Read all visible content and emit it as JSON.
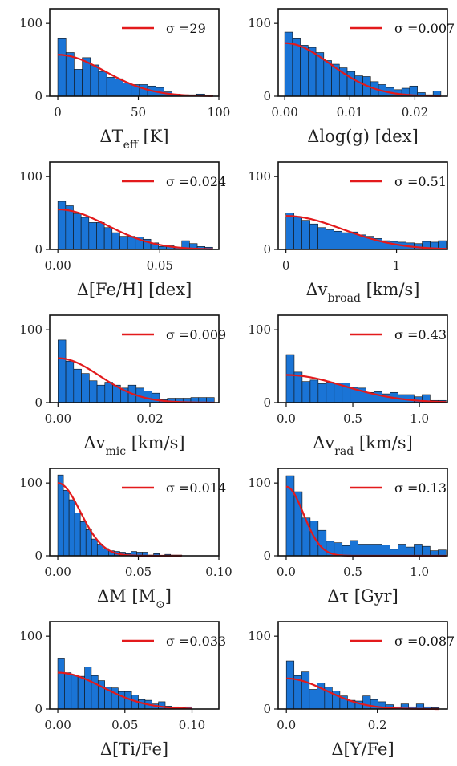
{
  "chart_data": [
    {
      "type": "bar",
      "xlabel": "ΔT_eff [K]",
      "xlim": [
        -5,
        100
      ],
      "ylim": [
        0,
        120
      ],
      "xticks": [
        0,
        50,
        100
      ],
      "yticks": [
        0,
        100
      ],
      "bin_width": 5.07,
      "bins_x": [
        0,
        5.07,
        10.14,
        15.21,
        20.28,
        25.35,
        30.42,
        35.49,
        40.56,
        45.63,
        50.7,
        55.77,
        60.84,
        65.91,
        70.98,
        76.05,
        81.12,
        86.19,
        91.26
      ],
      "values": [
        80,
        60,
        37,
        53,
        43,
        34,
        26,
        24,
        18,
        16,
        16,
        14,
        12,
        6,
        3,
        2,
        2,
        3,
        1
      ],
      "fit": {
        "sigma": 29,
        "amplitude": 57,
        "label": "σ =29",
        "color": "#e31a1c"
      },
      "bar_color": "#1a74d6"
    },
    {
      "type": "bar",
      "xlabel": "Δlog(g) [dex]",
      "xlim": [
        -0.001,
        0.025
      ],
      "ylim": [
        0,
        120
      ],
      "xticks": [
        0,
        0.01,
        0.02
      ],
      "xticklabels": [
        "0.00",
        "0.01",
        "0.02"
      ],
      "yticks": [
        0,
        100
      ],
      "bin_width": 0.0012,
      "bins_x": [
        0,
        0.0012,
        0.0024,
        0.0036,
        0.0048,
        0.006,
        0.0072,
        0.0084,
        0.0096,
        0.0108,
        0.012,
        0.0132,
        0.0144,
        0.0156,
        0.0168,
        0.018,
        0.0192,
        0.0204,
        0.0216,
        0.0228
      ],
      "values": [
        88,
        80,
        70,
        67,
        60,
        49,
        44,
        39,
        34,
        28,
        27,
        20,
        16,
        12,
        9,
        11,
        14,
        5,
        2,
        7
      ],
      "fit": {
        "sigma": 0.007,
        "amplitude": 73,
        "label": "σ =0.007",
        "color": "#e31a1c"
      },
      "bar_color": "#1a74d6"
    },
    {
      "type": "bar",
      "xlabel": "Δ[Fe/H] [dex]",
      "xlim": [
        -0.004,
        0.079
      ],
      "ylim": [
        0,
        120
      ],
      "xticks": [
        0,
        0.05
      ],
      "xticklabels": [
        "0.00",
        "0.05"
      ],
      "yticks": [
        0,
        100
      ],
      "bin_width": 0.0038,
      "bins_x": [
        0,
        0.0038,
        0.0076,
        0.0114,
        0.0152,
        0.019,
        0.0228,
        0.0266,
        0.0304,
        0.0342,
        0.038,
        0.0418,
        0.0456,
        0.0494,
        0.0532,
        0.057,
        0.0608,
        0.0646,
        0.0684,
        0.0722
      ],
      "values": [
        66,
        60,
        49,
        44,
        37,
        37,
        30,
        23,
        18,
        18,
        17,
        14,
        9,
        4,
        5,
        2,
        12,
        8,
        4,
        3
      ],
      "fit": {
        "sigma": 0.024,
        "amplitude": 55,
        "label": "σ =0.024",
        "color": "#e31a1c"
      },
      "bar_color": "#1a74d6"
    },
    {
      "type": "bar",
      "xlabel": "Δv_broad [km/s]",
      "xlim": [
        -0.07,
        1.46
      ],
      "ylim": [
        0,
        120
      ],
      "xticks": [
        0,
        1
      ],
      "xticklabels": [
        "0",
        "1"
      ],
      "yticks": [
        0,
        100
      ],
      "bin_width": 0.0725,
      "bins_x": [
        0,
        0.0725,
        0.145,
        0.2175,
        0.29,
        0.3625,
        0.435,
        0.5075,
        0.58,
        0.6525,
        0.725,
        0.7975,
        0.87,
        0.9425,
        1.015,
        1.0875,
        1.16,
        1.2325,
        1.305,
        1.3775
      ],
      "values": [
        50,
        45,
        40,
        35,
        30,
        27,
        25,
        23,
        24,
        20,
        18,
        15,
        12,
        11,
        10,
        9,
        8,
        11,
        10,
        12
      ],
      "fit": {
        "sigma": 0.51,
        "amplitude": 46,
        "label": "σ =0.51",
        "color": "#e31a1c"
      },
      "bar_color": "#1a74d6"
    },
    {
      "type": "bar",
      "xlabel": "Δv_mic [km/s]",
      "xlim": [
        -0.0018,
        0.035
      ],
      "ylim": [
        0,
        120
      ],
      "xticks": [
        0,
        0.02
      ],
      "xticklabels": [
        "0.00",
        "0.02"
      ],
      "yticks": [
        0,
        100
      ],
      "bin_width": 0.0017,
      "bins_x": [
        0,
        0.0017,
        0.0034,
        0.0051,
        0.0068,
        0.0085,
        0.0102,
        0.0119,
        0.0136,
        0.0153,
        0.017,
        0.0187,
        0.0204,
        0.0221,
        0.0238,
        0.0255,
        0.0272,
        0.0289,
        0.0306,
        0.0323
      ],
      "values": [
        86,
        57,
        46,
        40,
        30,
        24,
        28,
        24,
        20,
        24,
        20,
        16,
        13,
        4,
        6,
        6,
        6,
        7,
        7,
        7
      ],
      "fit": {
        "sigma": 0.009,
        "amplitude": 61,
        "label": "σ =0.009",
        "color": "#e31a1c"
      },
      "bar_color": "#1a74d6"
    },
    {
      "type": "bar",
      "xlabel": "Δv_rad [km/s]",
      "xlim": [
        -0.06,
        1.21
      ],
      "ylim": [
        0,
        120
      ],
      "xticks": [
        0,
        0.5,
        1
      ],
      "xticklabels": [
        "0.0",
        "0.5",
        "1.0"
      ],
      "yticks": [
        0,
        100
      ],
      "bin_width": 0.06,
      "bins_x": [
        0,
        0.06,
        0.12,
        0.18,
        0.24,
        0.3,
        0.36,
        0.42,
        0.48,
        0.54,
        0.6,
        0.66,
        0.72,
        0.78,
        0.84,
        0.9,
        0.96,
        1.02,
        1.08,
        1.14
      ],
      "values": [
        66,
        42,
        29,
        31,
        26,
        28,
        27,
        27,
        21,
        20,
        14,
        15,
        12,
        14,
        11,
        11,
        8,
        11,
        3,
        3
      ],
      "fit": {
        "sigma": 0.43,
        "amplitude": 38,
        "label": "σ =0.43",
        "color": "#e31a1c"
      },
      "bar_color": "#1a74d6"
    },
    {
      "type": "bar",
      "xlabel": "ΔM [M⊙]",
      "xlim": [
        -0.005,
        0.1
      ],
      "ylim": [
        0,
        120
      ],
      "xticks": [
        0,
        0.05,
        0.1
      ],
      "xticklabels": [
        "0.00",
        "0.05",
        "0.10"
      ],
      "yticks": [
        0,
        100
      ],
      "bin_width": 0.0035,
      "bins_x": [
        0,
        0.0035,
        0.007,
        0.0105,
        0.014,
        0.0175,
        0.021,
        0.0245,
        0.028,
        0.0315,
        0.035,
        0.0385,
        0.042,
        0.0455,
        0.049,
        0.0525,
        0.056,
        0.0595,
        0.063,
        0.0665,
        0.07,
        0.0735
      ],
      "values": [
        111,
        90,
        77,
        59,
        47,
        36,
        23,
        16,
        10,
        7,
        6,
        5,
        3,
        6,
        5,
        5,
        1,
        3,
        0,
        2,
        1,
        1
      ],
      "fit": {
        "sigma": 0.014,
        "amplitude": 100,
        "label": "σ =0.014",
        "color": "#e31a1c"
      },
      "bar_color": "#1a74d6"
    },
    {
      "type": "bar",
      "xlabel": "Δτ [Gyr]",
      "xlim": [
        -0.06,
        1.21
      ],
      "ylim": [
        0,
        120
      ],
      "xticks": [
        0,
        0.5,
        1
      ],
      "xticklabels": [
        "0.0",
        "0.5",
        "1.0"
      ],
      "yticks": [
        0,
        100
      ],
      "bin_width": 0.06,
      "bins_x": [
        0,
        0.06,
        0.12,
        0.18,
        0.24,
        0.3,
        0.36,
        0.42,
        0.48,
        0.54,
        0.6,
        0.66,
        0.72,
        0.78,
        0.84,
        0.9,
        0.96,
        1.02,
        1.08,
        1.14
      ],
      "values": [
        110,
        88,
        52,
        48,
        35,
        20,
        18,
        14,
        21,
        16,
        16,
        16,
        15,
        9,
        16,
        12,
        16,
        13,
        7,
        8
      ],
      "fit": {
        "sigma": 0.13,
        "amplitude": 95,
        "label": "σ =0.13",
        "color": "#e31a1c"
      },
      "bar_color": "#1a74d6"
    },
    {
      "type": "bar",
      "xlabel": "Δ[Ti/Fe]",
      "xlim": [
        -0.006,
        0.12
      ],
      "ylim": [
        0,
        120
      ],
      "xticks": [
        0,
        0.05,
        0.1
      ],
      "xticklabels": [
        "0.00",
        "0.05",
        "0.10"
      ],
      "yticks": [
        0,
        100
      ],
      "bin_width": 0.005,
      "bins_x": [
        0,
        0.005,
        0.01,
        0.015,
        0.02,
        0.025,
        0.03,
        0.035,
        0.04,
        0.045,
        0.05,
        0.055,
        0.06,
        0.065,
        0.07,
        0.075,
        0.08,
        0.085,
        0.09,
        0.095
      ],
      "values": [
        70,
        50,
        47,
        45,
        58,
        46,
        39,
        30,
        29,
        24,
        24,
        19,
        13,
        12,
        7,
        10,
        4,
        3,
        2,
        3
      ],
      "fit": {
        "sigma": 0.033,
        "amplitude": 50,
        "label": "σ =0.033",
        "color": "#e31a1c"
      },
      "bar_color": "#1a74d6"
    },
    {
      "type": "bar",
      "xlabel": "Δ[Y/Fe]",
      "xlim": [
        -0.018,
        0.354
      ],
      "ylim": [
        0,
        120
      ],
      "xticks": [
        0,
        0.2
      ],
      "xticklabels": [
        "0.0",
        "0.2"
      ],
      "yticks": [
        0,
        100
      ],
      "bin_width": 0.0168,
      "bins_x": [
        0,
        0.0168,
        0.0336,
        0.0504,
        0.0672,
        0.084,
        0.1008,
        0.1176,
        0.1344,
        0.1512,
        0.168,
        0.1848,
        0.2016,
        0.2184,
        0.2352,
        0.252,
        0.2688,
        0.2856,
        0.3024,
        0.3192
      ],
      "values": [
        66,
        46,
        51,
        27,
        36,
        30,
        25,
        18,
        12,
        11,
        18,
        13,
        10,
        6,
        3,
        7,
        3,
        7,
        3,
        2
      ],
      "fit": {
        "sigma": 0.087,
        "amplitude": 42,
        "label": "σ =0.087",
        "color": "#e31a1c"
      },
      "bar_color": "#1a74d6"
    }
  ]
}
